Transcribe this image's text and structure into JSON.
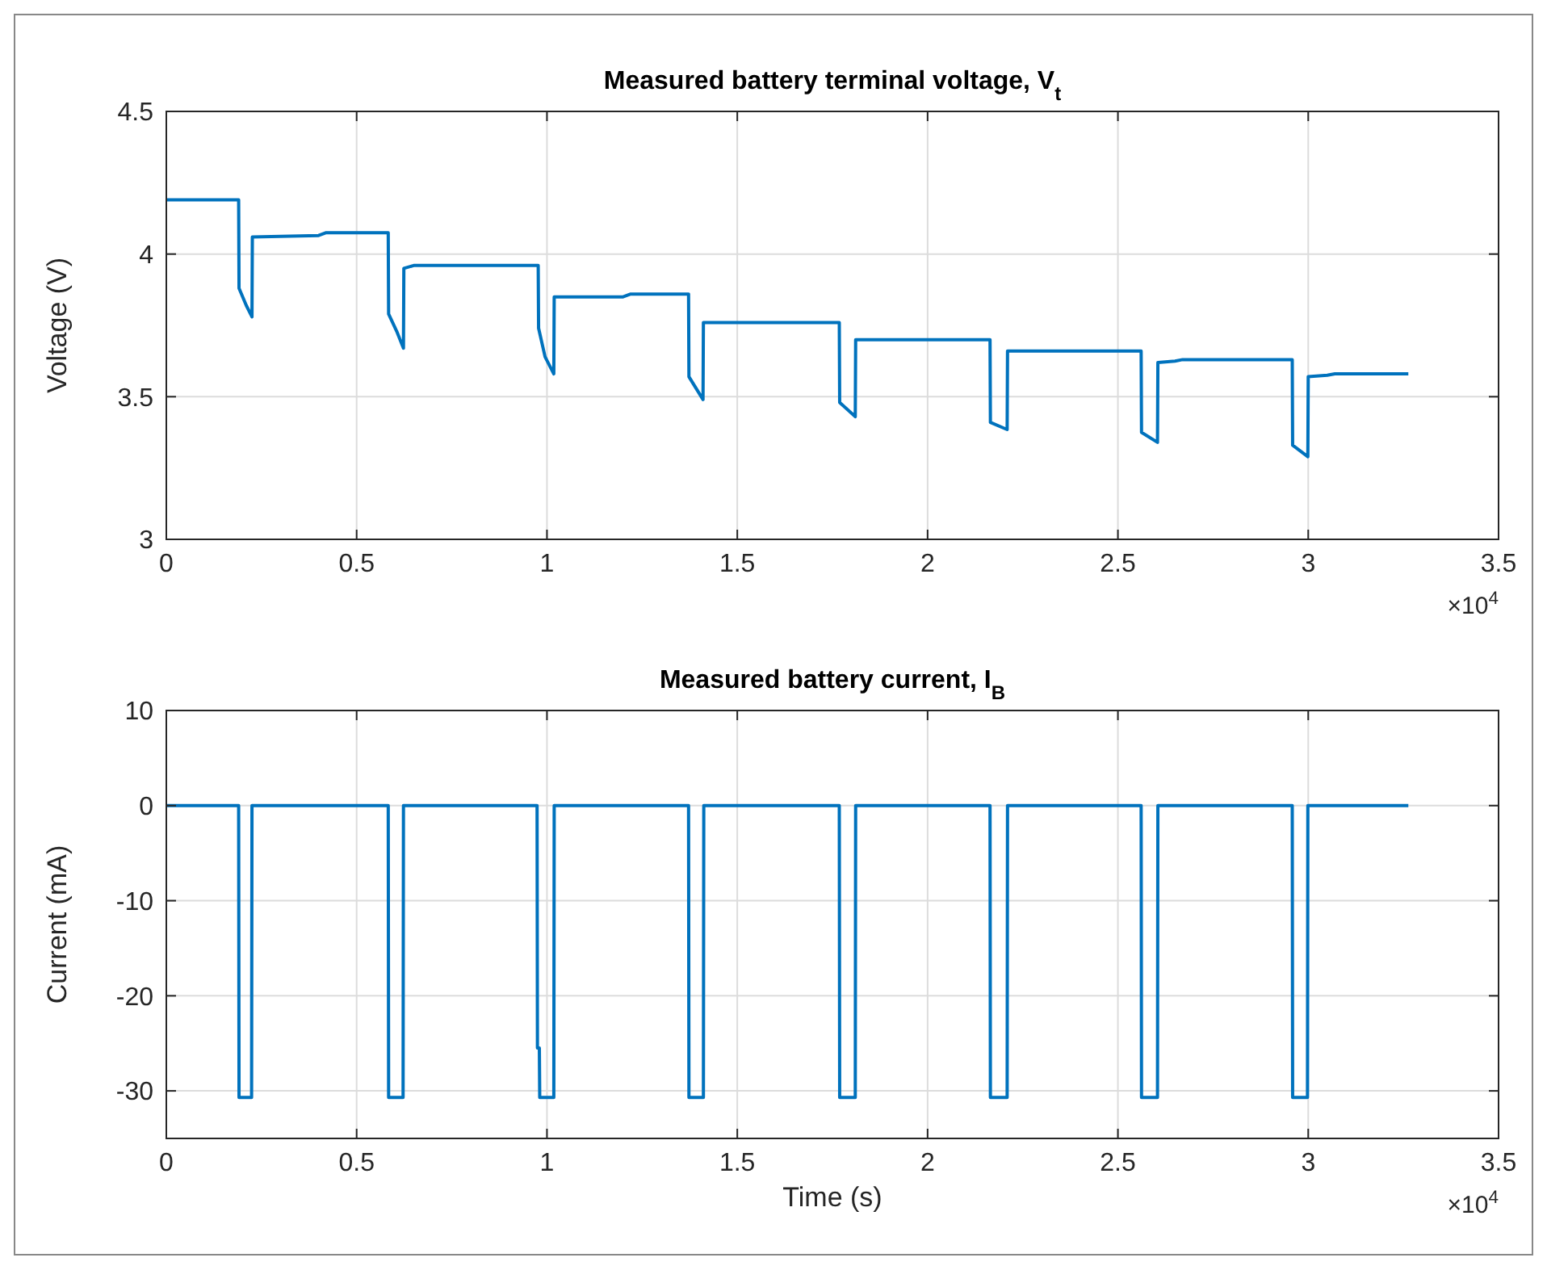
{
  "chart_data": [
    {
      "type": "line",
      "title": "Measured battery terminal voltage, V$_{t}$",
      "ylabel": "Voltage (V)",
      "annotations": [
        "×10$^{4}$"
      ],
      "xlim": [
        0,
        3.5
      ],
      "xticks": [
        0,
        0.5,
        1,
        1.5,
        2,
        2.5,
        3,
        3.5
      ],
      "ylim": [
        3,
        4.5
      ],
      "yticks": [
        3,
        3.5,
        4,
        4.5
      ],
      "grid": true,
      "line_style": "solid",
      "series": [
        {
          "color": "#0072bd",
          "x": [
            0,
            0.19,
            0.191,
            0.21,
            0.225,
            0.226,
            0.4,
            0.42,
            0.583,
            0.584,
            0.605,
            0.623,
            0.624,
            0.65,
            0.977,
            0.978,
            0.995,
            1.018,
            1.019,
            1.2,
            1.22,
            1.372,
            1.373,
            1.41,
            1.411,
            1.768,
            1.769,
            1.81,
            1.811,
            2.164,
            2.165,
            2.209,
            2.21,
            2.561,
            2.562,
            2.604,
            2.605,
            2.65,
            2.67,
            2.958,
            2.959,
            2.999,
            3.0,
            3.05,
            3.07,
            3.263
          ],
          "values": [
            4.19,
            4.19,
            3.88,
            3.82,
            3.78,
            4.06,
            4.065,
            4.075,
            4.075,
            3.79,
            3.73,
            3.67,
            3.95,
            3.96,
            3.96,
            3.74,
            3.64,
            3.58,
            3.85,
            3.85,
            3.86,
            3.86,
            3.57,
            3.49,
            3.76,
            3.76,
            3.48,
            3.43,
            3.7,
            3.7,
            3.41,
            3.385,
            3.66,
            3.66,
            3.375,
            3.34,
            3.62,
            3.625,
            3.63,
            3.63,
            3.33,
            3.29,
            3.57,
            3.575,
            3.58,
            3.58
          ]
        }
      ]
    },
    {
      "type": "line",
      "title": "Measured battery current, I$_{B}$",
      "xlabel": "Time (s)",
      "ylabel": "Current (mA)",
      "annotations": [
        "×10$^{4}$"
      ],
      "xlim": [
        0,
        3.5
      ],
      "xticks": [
        0,
        0.5,
        1,
        1.5,
        2,
        2.5,
        3,
        3.5
      ],
      "ylim": [
        -35,
        10
      ],
      "yticks": [
        -30,
        -20,
        -10,
        0,
        10
      ],
      "grid": true,
      "line_style": "solid",
      "series": [
        {
          "color": "#0072bd",
          "x": [
            0,
            0.19,
            0.191,
            0.224,
            0.225,
            0.583,
            0.584,
            0.622,
            0.623,
            0.974,
            0.975,
            0.98,
            0.981,
            1.018,
            1.019,
            1.372,
            1.373,
            1.411,
            1.412,
            1.768,
            1.769,
            1.81,
            1.811,
            2.164,
            2.165,
            2.209,
            2.21,
            2.561,
            2.562,
            2.604,
            2.605,
            2.958,
            2.959,
            2.998,
            2.999,
            3.263
          ],
          "values": [
            0,
            0,
            -30.7,
            -30.7,
            0,
            0,
            -30.7,
            -30.7,
            0,
            0,
            -25.5,
            -25.5,
            -30.7,
            -30.7,
            0,
            0,
            -30.7,
            -30.7,
            0,
            0,
            -30.7,
            -30.7,
            0,
            0,
            -30.7,
            -30.7,
            0,
            0,
            -30.7,
            -30.7,
            0,
            0,
            -30.7,
            -30.7,
            0,
            0
          ]
        }
      ]
    }
  ]
}
